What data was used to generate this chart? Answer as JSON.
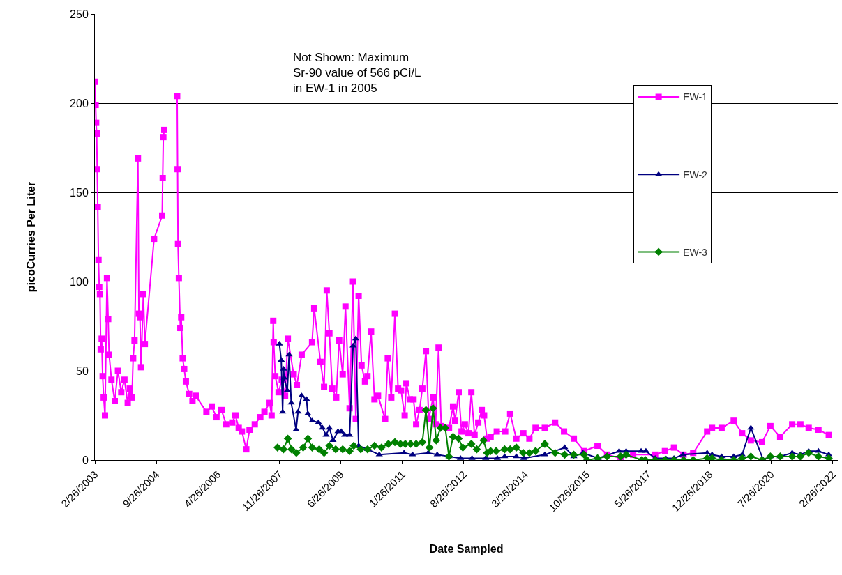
{
  "chart_data": {
    "type": "line",
    "xlabel": "Date Sampled",
    "ylabel": "picoCurries Per Liter",
    "annotations": [
      "Not Shown: Maximum\nSr-90 value of 566 pCi/L\nin EW-1 in 2005"
    ],
    "xlim": [
      "2003-02-26",
      "2022-04-15"
    ],
    "xticks": [
      {
        "value": "2003-02-26",
        "label": "2/26/2003"
      },
      {
        "value": "2004-09-26",
        "label": "9/26/2004"
      },
      {
        "value": "2006-04-26",
        "label": "4/26/2006"
      },
      {
        "value": "2007-11-26",
        "label": "11/26/2007"
      },
      {
        "value": "2009-06-26",
        "label": "6/26/2009"
      },
      {
        "value": "2011-01-26",
        "label": "1/26/2011"
      },
      {
        "value": "2012-08-26",
        "label": "8/26/2012"
      },
      {
        "value": "2014-03-26",
        "label": "3/26/2014"
      },
      {
        "value": "2015-10-26",
        "label": "10/26/2015"
      },
      {
        "value": "2017-05-26",
        "label": "5/26/2017"
      },
      {
        "value": "2018-12-26",
        "label": "12/26/2018"
      },
      {
        "value": "2020-07-26",
        "label": "7/26/2020"
      },
      {
        "value": "2022-02-26",
        "label": "2/26/2022"
      }
    ],
    "ylim": [
      0,
      250
    ],
    "yticks": [
      0,
      50,
      100,
      150,
      200,
      250
    ],
    "grid": "y",
    "legend": "right",
    "series": [
      {
        "name": "EW-1",
        "color": "#ff00ff",
        "marker": "square",
        "x": [
          "2003-02-26",
          "2003-03-05",
          "2003-03-10",
          "2003-03-15",
          "2003-03-20",
          "2003-03-25",
          "2003-04-01",
          "2003-04-08",
          "2003-04-15",
          "2003-04-22",
          "2003-05-01",
          "2003-05-10",
          "2003-05-20",
          "2003-06-01",
          "2003-06-20",
          "2003-07-01",
          "2003-07-10",
          "2003-08-01",
          "2003-09-01",
          "2003-10-01",
          "2003-11-01",
          "2003-12-01",
          "2004-01-01",
          "2004-01-20",
          "2004-02-10",
          "2004-02-21",
          "2004-03-05",
          "2004-04-06",
          "2004-04-15",
          "2004-04-25",
          "2004-05-05",
          "2004-05-27",
          "2004-06-10",
          "2004-09-05",
          "2004-11-20",
          "2004-11-25",
          "2004-12-01",
          "2004-12-10",
          "2005-02-01",
          "2005-04-10",
          "2005-04-14",
          "2005-04-18",
          "2005-04-26",
          "2005-05-10",
          "2005-05-18",
          "2005-06-01",
          "2005-06-15",
          "2005-07-01",
          "2005-08-01",
          "2005-09-01",
          "2005-10-01",
          "2006-01-10",
          "2006-03-01",
          "2006-04-15",
          "2006-06-01",
          "2006-07-15",
          "2006-09-10",
          "2006-10-10",
          "2006-11-10",
          "2006-12-10",
          "2007-01-20",
          "2007-02-20",
          "2007-04-10",
          "2007-06-01",
          "2007-07-10",
          "2007-08-28",
          "2007-09-15",
          "2007-10-01",
          "2007-10-05",
          "2007-10-20",
          "2007-11-20",
          "2007-12-20",
          "2008-01-20",
          "2008-02-15",
          "2008-04-10",
          "2008-05-10",
          "2008-06-24",
          "2008-09-30",
          "2008-10-20",
          "2008-12-18",
          "2009-01-21",
          "2009-02-15",
          "2009-03-12",
          "2009-04-08",
          "2009-05-15",
          "2009-06-12",
          "2009-07-15",
          "2009-08-10",
          "2009-09-18",
          "2009-10-20",
          "2009-11-15",
          "2009-12-12",
          "2010-01-08",
          "2010-02-10",
          "2010-03-05",
          "2010-04-08",
          "2010-05-10",
          "2010-06-12",
          "2010-08-18",
          "2010-09-12",
          "2010-10-15",
          "2010-11-18",
          "2010-12-18",
          "2011-01-15",
          "2011-02-18",
          "2011-03-06",
          "2011-04-08",
          "2011-05-12",
          "2011-06-06",
          "2011-07-08",
          "2011-08-03",
          "2011-09-06",
          "2011-10-03",
          "2011-11-12",
          "2011-12-06",
          "2012-01-03",
          "2012-01-28",
          "2012-04-10",
          "2012-05-18",
          "2012-06-06",
          "2012-07-10",
          "2012-08-06",
          "2012-09-06",
          "2012-10-10",
          "2012-11-06",
          "2012-12-06",
          "2013-01-10",
          "2013-02-12",
          "2013-03-06",
          "2013-04-03",
          "2013-05-06",
          "2013-07-03",
          "2013-09-20",
          "2013-11-06",
          "2014-01-03",
          "2014-03-10",
          "2014-05-06",
          "2014-07-03",
          "2014-09-28",
          "2015-01-03",
          "2015-03-28",
          "2015-06-28",
          "2015-10-03",
          "2016-02-06",
          "2016-05-06",
          "2016-09-10",
          "2017-01-06",
          "2017-08-01",
          "2017-11-01",
          "2018-01-25",
          "2018-04-25",
          "2018-07-25",
          "2018-12-03",
          "2019-01-18",
          "2019-04-18",
          "2019-08-10",
          "2019-10-28",
          "2020-01-18",
          "2020-05-03",
          "2020-07-20",
          "2020-10-20",
          "2021-02-10",
          "2021-04-28",
          "2021-07-15",
          "2021-10-15",
          "2022-01-20"
        ],
        "values": [
          212,
          199,
          189,
          183,
          163,
          142,
          112,
          97,
          93,
          62,
          68,
          47,
          35,
          25,
          102,
          79,
          59,
          45,
          33,
          50,
          38,
          45,
          32,
          40,
          35,
          57,
          67,
          169,
          82,
          80,
          52,
          93,
          65,
          124,
          137,
          158,
          181,
          185,
          null,
          204,
          163,
          121,
          102,
          74,
          80,
          57,
          51,
          44,
          37,
          33,
          36,
          27,
          30,
          24,
          28,
          20,
          21,
          25,
          18,
          16,
          6,
          17,
          20,
          24,
          27,
          32,
          25,
          78,
          66,
          47,
          38,
          45,
          36,
          68,
          48,
          42,
          59,
          66,
          85,
          55,
          41,
          95,
          71,
          40,
          35,
          67,
          48,
          86,
          29,
          100,
          23,
          92,
          53,
          44,
          47,
          72,
          34,
          36,
          23,
          57,
          35,
          82,
          40,
          39,
          25,
          43,
          34,
          34,
          20,
          28,
          40,
          61,
          23,
          35,
          20,
          63,
          19,
          18,
          30,
          22,
          38,
          16,
          20,
          15,
          38,
          14,
          21,
          28,
          25,
          12,
          13,
          16,
          16,
          26,
          12,
          15,
          12,
          18,
          18,
          21,
          16,
          12,
          5,
          8,
          3,
          1,
          3,
          3,
          5,
          7,
          3,
          4,
          16,
          18,
          18,
          22,
          15,
          11,
          10,
          19,
          13,
          20,
          20,
          18,
          17,
          14
        ]
      },
      {
        "name": "EW-2",
        "color": "#000080",
        "marker": "triangle",
        "x": [
          "2007-11-28",
          "2007-12-15",
          "2007-12-28",
          "2008-01-06",
          "2008-01-12",
          "2008-02-10",
          "2008-02-27",
          "2008-03-18",
          "2008-05-03",
          "2008-05-21",
          "2008-06-24",
          "2008-08-09",
          "2008-08-21",
          "2008-10-01",
          "2008-11-29",
          "2009-01-06",
          "2009-02-09",
          "2009-03-12",
          "2009-04-15",
          "2009-06-01",
          "2009-07-01",
          "2009-08-03",
          "2009-09-18",
          "2009-10-21",
          "2009-11-15",
          "2009-12-12",
          "2010-03-06",
          "2010-06-24",
          "2011-02-12",
          "2011-05-03",
          "2011-09-27",
          "2011-12-21",
          "2012-04-09",
          "2012-07-27",
          "2012-11-12",
          "2013-03-21",
          "2013-07-09",
          "2013-09-15",
          "2014-01-03",
          "2014-03-15",
          "2014-09-28",
          "2015-04-03",
          "2015-06-28",
          "2015-09-22",
          "2016-02-12",
          "2016-08-27",
          "2016-11-01",
          "2017-03-22",
          "2017-05-06",
          "2017-08-01",
          "2017-11-09",
          "2018-01-25",
          "2018-04-20",
          "2018-12-03",
          "2019-01-18",
          "2019-04-18",
          "2019-08-10",
          "2019-10-28",
          "2020-01-18",
          "2020-05-15",
          "2020-07-20",
          "2020-10-20",
          "2021-02-10",
          "2021-04-28",
          "2021-07-15",
          "2021-10-15",
          "2022-01-20"
        ],
        "values": [
          65,
          56,
          27,
          51,
          46,
          39,
          59,
          32,
          17,
          27,
          36,
          34,
          26,
          22,
          21,
          18,
          14,
          18,
          11,
          16,
          16,
          14,
          14,
          64,
          68,
          8,
          6,
          3,
          4,
          3,
          4,
          3,
          2,
          1,
          1,
          1,
          1,
          2,
          2,
          1,
          3,
          7,
          2,
          4,
          1,
          5,
          5,
          5,
          5,
          1,
          1,
          1,
          3,
          4,
          3,
          2,
          2,
          3,
          18,
          0,
          2,
          2,
          4,
          3,
          5,
          5,
          3
        ]
      },
      {
        "name": "EW-3",
        "color": "#008000",
        "marker": "diamond",
        "x": [
          "2007-11-10",
          "2008-01-05",
          "2008-02-15",
          "2008-03-20",
          "2008-05-05",
          "2008-07-08",
          "2008-08-22",
          "2008-10-01",
          "2008-12-06",
          "2009-01-21",
          "2009-03-12",
          "2009-05-10",
          "2009-07-15",
          "2009-09-18",
          "2009-10-27",
          "2010-01-01",
          "2010-03-06",
          "2010-05-10",
          "2010-07-15",
          "2010-09-18",
          "2010-11-18",
          "2011-01-09",
          "2011-02-24",
          "2011-04-15",
          "2011-06-06",
          "2011-08-03",
          "2011-09-06",
          "2011-10-09",
          "2011-11-12",
          "2011-12-12",
          "2012-01-21",
          "2012-03-06",
          "2012-04-09",
          "2012-05-18",
          "2012-07-09",
          "2012-08-18",
          "2012-11-06",
          "2012-12-27",
          "2013-03-01",
          "2013-04-03",
          "2013-05-06",
          "2013-06-27",
          "2013-09-15",
          "2013-11-06",
          "2014-01-03",
          "2014-03-09",
          "2014-05-06",
          "2014-07-03",
          "2014-09-28",
          "2015-01-03",
          "2015-04-03",
          "2015-06-28",
          "2015-10-03",
          "2015-11-01",
          "2016-02-06",
          "2016-05-06",
          "2016-09-10",
          "2016-11-01",
          "2017-03-28",
          "2017-05-01",
          "2017-08-01",
          "2017-11-01",
          "2018-01-25",
          "2018-04-25",
          "2018-07-25",
          "2018-12-03",
          "2019-01-18",
          "2019-04-18",
          "2019-08-10",
          "2019-10-28",
          "2020-01-18",
          "2020-05-03",
          "2020-07-20",
          "2020-10-20",
          "2021-02-10",
          "2021-04-28",
          "2021-07-15",
          "2021-10-15",
          "2022-01-20"
        ],
        "values": [
          7,
          6,
          12,
          6,
          4,
          7,
          12,
          7,
          6,
          4,
          8,
          6,
          6,
          5,
          8,
          6,
          6,
          8,
          7,
          9,
          10,
          9,
          9,
          9,
          9,
          10,
          28,
          7,
          29,
          11,
          18,
          18,
          2,
          13,
          12,
          7,
          9,
          6,
          11,
          4,
          5,
          5,
          6,
          6,
          7,
          4,
          4,
          5,
          9,
          4,
          3,
          3,
          3,
          0,
          1,
          2,
          2,
          3,
          0,
          0,
          0,
          0,
          0,
          0,
          0,
          1,
          1,
          0,
          0,
          1,
          2,
          0,
          2,
          2,
          2,
          2,
          4,
          2,
          1
        ]
      }
    ]
  }
}
